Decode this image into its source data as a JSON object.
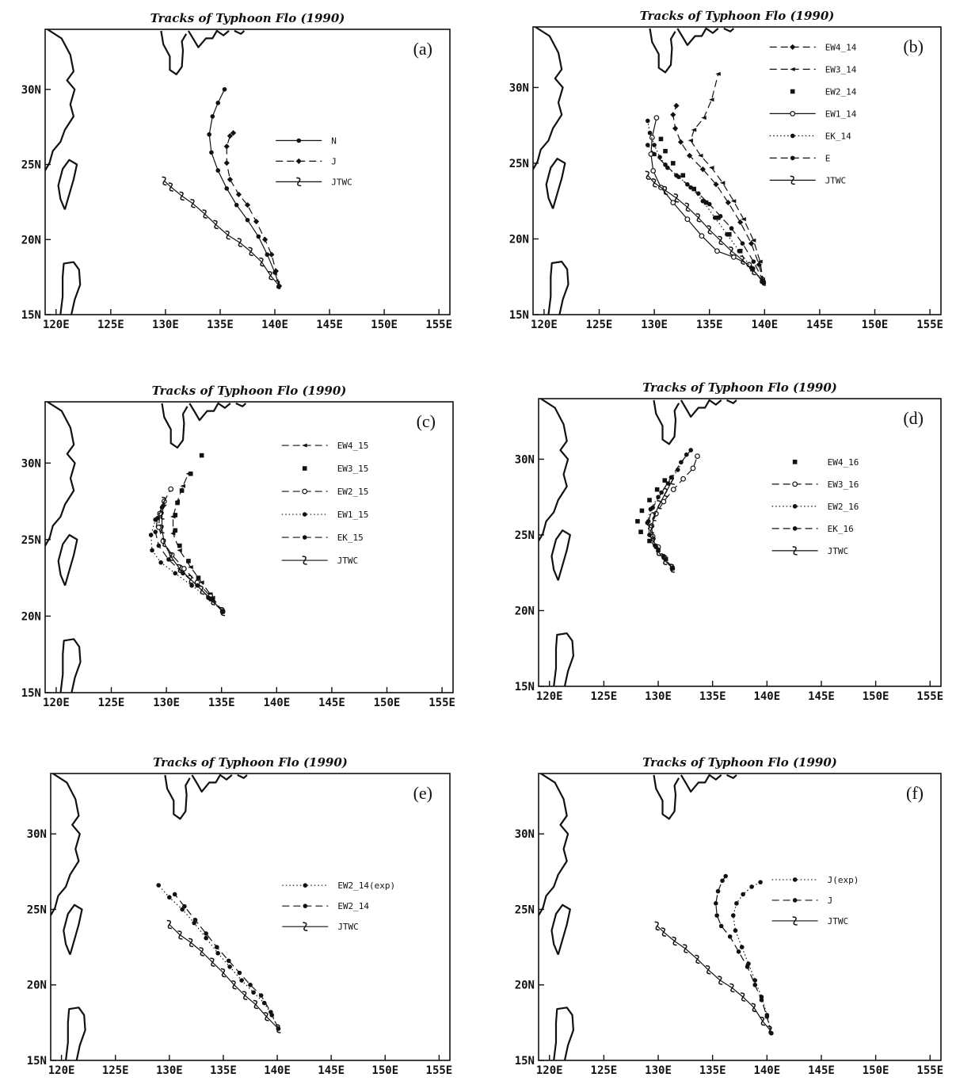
{
  "figure": {
    "panels": [
      {
        "id": "a",
        "label": "(a)",
        "title": "Tracks of Typhoon Flo (1990)"
      },
      {
        "id": "b",
        "label": "(b)",
        "title": "Tracks of Typhoon Flo (1990)"
      },
      {
        "id": "c",
        "label": "(c)",
        "title": "Tracks of Typhoon Flo (1990)"
      },
      {
        "id": "d",
        "label": "(d)",
        "title": "Tracks of Typhoon Flo (1990)"
      },
      {
        "id": "e",
        "label": "(e)",
        "title": "Tracks of Typhoon Flo (1990)"
      },
      {
        "id": "f",
        "label": "(f)",
        "title": "Tracks of Typhoon Flo (1990)"
      }
    ]
  },
  "chart_data": [
    {
      "type": "line",
      "panel": "a",
      "title": "Tracks of Typhoon Flo (1990)",
      "x_ticks": [
        "120E",
        "125E",
        "130E",
        "135E",
        "140E",
        "145E",
        "150E",
        "155E"
      ],
      "y_ticks": [
        "15N",
        "20N",
        "25N",
        "30N"
      ],
      "xlim": [
        119,
        156
      ],
      "ylim": [
        15,
        34
      ],
      "legend_position": "center-right",
      "series": [
        {
          "name": "N",
          "marker": "dot",
          "dash": "solid",
          "x": [
            140.4,
            140.0,
            139.3,
            138.5,
            137.5,
            136.5,
            135.6,
            134.8,
            134.2,
            134.0,
            134.3,
            134.8,
            135.4
          ],
          "y": [
            16.9,
            17.8,
            19.0,
            20.2,
            21.3,
            22.3,
            23.4,
            24.6,
            25.8,
            27.0,
            28.2,
            29.1,
            30.0
          ]
        },
        {
          "name": "J",
          "marker": "diamond",
          "dash": "dash",
          "x": [
            140.4,
            140.1,
            139.7,
            139.1,
            138.3,
            137.5,
            136.7,
            135.9,
            135.6,
            135.6,
            135.9,
            136.2
          ],
          "y": [
            16.9,
            17.9,
            19.0,
            20.0,
            21.2,
            22.3,
            23.0,
            24.0,
            25.1,
            26.2,
            26.9,
            27.1
          ]
        },
        {
          "name": "JTWC",
          "marker": "typhoon",
          "dash": "solid",
          "x": [
            140.3,
            139.6,
            138.8,
            137.8,
            136.8,
            135.7,
            134.6,
            133.6,
            132.5,
            131.5,
            130.5,
            129.9
          ],
          "y": [
            17.0,
            17.6,
            18.5,
            19.2,
            19.8,
            20.3,
            21.0,
            21.7,
            22.4,
            22.9,
            23.5,
            23.9
          ]
        }
      ]
    },
    {
      "type": "line",
      "panel": "b",
      "title": "Tracks of Typhoon Flo (1990)",
      "x_ticks": [
        "120E",
        "125E",
        "130E",
        "135E",
        "140E",
        "145E",
        "150E",
        "155E"
      ],
      "y_ticks": [
        "15N",
        "20N",
        "25N",
        "30N"
      ],
      "xlim": [
        119,
        156
      ],
      "ylim": [
        15,
        34
      ],
      "legend_position": "top-right",
      "series": [
        {
          "name": "EW4_14",
          "marker": "diamond",
          "dash": "dash",
          "x": [
            139.9,
            139.5,
            138.8,
            137.8,
            136.7,
            135.6,
            134.4,
            133.2,
            132.4,
            131.9,
            131.7,
            132.0
          ],
          "y": [
            17.1,
            18.3,
            19.7,
            21.1,
            22.4,
            23.6,
            24.6,
            25.5,
            26.4,
            27.3,
            28.2,
            28.8
          ]
        },
        {
          "name": "EW3_14",
          "marker": "arrow",
          "dash": "dash",
          "x": [
            139.9,
            139.6,
            139.0,
            138.1,
            137.2,
            136.2,
            135.2,
            134.2,
            133.3,
            133.6,
            134.5,
            135.2,
            135.8
          ],
          "y": [
            17.1,
            18.5,
            19.9,
            21.3,
            22.5,
            23.7,
            24.7,
            25.5,
            26.5,
            27.2,
            28.0,
            29.2,
            30.9
          ]
        },
        {
          "name": "EW2_14",
          "marker": "square",
          "dash": "none",
          "x": [
            139.8,
            138.9,
            137.8,
            136.8,
            135.8,
            134.7,
            133.6,
            132.6,
            131.7,
            131.0,
            130.6
          ],
          "y": [
            17.2,
            18.0,
            19.2,
            20.3,
            21.4,
            22.4,
            23.3,
            24.2,
            25.0,
            25.8,
            26.6
          ]
        },
        {
          "name": "EW1_14",
          "marker": "circle-open",
          "dash": "solid",
          "x": [
            139.8,
            138.6,
            137.2,
            135.7,
            134.3,
            133.0,
            131.7,
            130.6,
            129.9,
            129.7,
            129.8,
            130.2
          ],
          "y": [
            17.2,
            18.3,
            18.8,
            19.2,
            20.2,
            21.3,
            22.4,
            23.4,
            24.5,
            25.6,
            26.7,
            28.0
          ]
        },
        {
          "name": "EK_14",
          "marker": "dot",
          "dash": "dot",
          "x": [
            139.8,
            138.8,
            137.7,
            136.6,
            135.5,
            134.4,
            133.3,
            132.2,
            131.2,
            130.5,
            130.0,
            129.6,
            129.4
          ],
          "y": [
            17.2,
            18.1,
            19.2,
            20.3,
            21.4,
            22.5,
            23.4,
            24.1,
            24.7,
            25.4,
            26.2,
            27.0,
            27.8
          ]
        },
        {
          "name": "E",
          "marker": "dot",
          "dash": "dash",
          "x": [
            139.9,
            139.0,
            138.0,
            137.0,
            136.0,
            135.0,
            134.0,
            133.0,
            132.0,
            131.0,
            130.0,
            129.4
          ],
          "y": [
            17.2,
            18.5,
            19.7,
            20.7,
            21.5,
            22.3,
            23.0,
            23.6,
            24.2,
            24.9,
            25.6,
            26.2
          ]
        },
        {
          "name": "JTWC",
          "marker": "typhoon",
          "dash": "solid",
          "x": [
            139.9,
            139.0,
            138.0,
            137.0,
            136.0,
            135.0,
            134.0,
            133.0,
            132.0,
            131.0,
            130.0,
            129.4
          ],
          "y": [
            17.2,
            17.9,
            18.6,
            19.2,
            19.9,
            20.6,
            21.4,
            22.1,
            22.7,
            23.2,
            23.7,
            24.2
          ]
        }
      ]
    },
    {
      "type": "line",
      "panel": "c",
      "title": "Tracks of Typhoon Flo (1990)",
      "x_ticks": [
        "120E",
        "125E",
        "130E",
        "135E",
        "140E",
        "145E",
        "150E",
        "155E"
      ],
      "y_ticks": [
        "15N",
        "20N",
        "25N",
        "30N"
      ],
      "xlim": [
        119,
        156
      ],
      "ylim": [
        15,
        34
      ],
      "legend_position": "top-right",
      "series": [
        {
          "name": "EW4_15",
          "marker": "arrow",
          "dash": "dash",
          "x": [
            135.1,
            134.2,
            133.2,
            132.2,
            131.2,
            130.6,
            130.6,
            131.0,
            131.5,
            132.0
          ],
          "y": [
            20.3,
            21.2,
            22.2,
            23.2,
            24.3,
            25.4,
            26.5,
            27.5,
            28.5,
            29.3
          ]
        },
        {
          "name": "EW3_15",
          "marker": "square",
          "dash": "none",
          "x": [
            135.1,
            134.0,
            132.9,
            132.0,
            131.2,
            130.8,
            130.8,
            131.0,
            131.4,
            132.2,
            133.2
          ],
          "y": [
            20.3,
            21.4,
            22.5,
            23.6,
            24.6,
            25.6,
            26.6,
            27.4,
            28.2,
            29.3,
            30.5
          ]
        },
        {
          "name": "EW2_15",
          "marker": "circle-open",
          "dash": "dash",
          "x": [
            135.1,
            134.0,
            132.8,
            131.6,
            130.5,
            129.7,
            129.3,
            129.4,
            129.8,
            130.4
          ],
          "y": [
            20.3,
            21.3,
            22.2,
            23.1,
            24.0,
            24.9,
            25.8,
            26.7,
            27.5,
            28.3
          ]
        },
        {
          "name": "EW1_15",
          "marker": "dot",
          "dash": "dot",
          "x": [
            135.1,
            133.8,
            132.3,
            130.8,
            129.5,
            128.7,
            128.6,
            129.0,
            129.6
          ],
          "y": [
            20.3,
            21.2,
            22.0,
            22.8,
            23.5,
            24.3,
            25.3,
            26.3,
            27.1
          ]
        },
        {
          "name": "EK_15",
          "marker": "dot",
          "dash": "dash",
          "x": [
            135.1,
            134.0,
            132.8,
            131.5,
            130.2,
            129.3,
            129.0,
            129.2,
            129.7
          ],
          "y": [
            20.3,
            21.1,
            22.0,
            22.8,
            23.7,
            24.6,
            25.5,
            26.4,
            27.2
          ]
        },
        {
          "name": "JTWC",
          "marker": "typhoon",
          "dash": "solid",
          "x": [
            135.1,
            134.2,
            133.2,
            132.2,
            131.2,
            130.4,
            129.8,
            129.6,
            129.6,
            129.8
          ],
          "y": [
            20.3,
            21.0,
            21.7,
            22.4,
            23.1,
            23.9,
            24.8,
            25.7,
            26.6,
            27.5
          ]
        }
      ]
    },
    {
      "type": "line",
      "panel": "d",
      "title": "Tracks of Typhoon Flo (1990)",
      "x_ticks": [
        "120E",
        "125E",
        "130E",
        "135E",
        "140E",
        "145E",
        "150E",
        "155E"
      ],
      "y_ticks": [
        "15N",
        "20N",
        "25N",
        "30N"
      ],
      "xlim": [
        119,
        156
      ],
      "ylim": [
        15,
        34
      ],
      "legend_position": "center-right",
      "series": [
        {
          "name": "EW4_16",
          "marker": "square",
          "dash": "none",
          "x": [
            131.3,
            130.7,
            130.0,
            129.2,
            128.4,
            128.1,
            128.5,
            129.2,
            129.9,
            130.6
          ],
          "y": [
            22.8,
            23.4,
            24.0,
            24.6,
            25.2,
            25.9,
            26.6,
            27.3,
            28.0,
            28.6
          ]
        },
        {
          "name": "EW3_16",
          "marker": "circle-open",
          "dash": "dash",
          "x": [
            131.3,
            130.6,
            130.0,
            129.5,
            129.4,
            129.8,
            130.5,
            131.4,
            132.3,
            133.2,
            133.6
          ],
          "y": [
            22.8,
            23.5,
            24.2,
            24.9,
            25.6,
            26.4,
            27.2,
            28.0,
            28.7,
            29.4,
            30.2
          ]
        },
        {
          "name": "EW2_16",
          "marker": "dot",
          "dash": "dot",
          "x": [
            131.3,
            130.5,
            129.8,
            129.2,
            129.0,
            129.3,
            130.0,
            130.9,
            131.8,
            132.6
          ],
          "y": [
            22.8,
            23.5,
            24.2,
            25.0,
            25.8,
            26.7,
            27.5,
            28.4,
            29.3,
            30.3
          ]
        },
        {
          "name": "EK_16",
          "marker": "dot",
          "dash": "dash",
          "x": [
            131.3,
            130.5,
            129.7,
            129.2,
            129.1,
            129.5,
            130.3,
            131.2,
            132.1,
            133.0
          ],
          "y": [
            22.8,
            23.6,
            24.3,
            25.0,
            25.9,
            26.8,
            27.8,
            28.8,
            29.8,
            30.6
          ]
        },
        {
          "name": "JTWC",
          "marker": "typhoon",
          "dash": "solid",
          "x": [
            131.3,
            130.6,
            130.0,
            129.6,
            129.4,
            129.6,
            130.1,
            130.7,
            131.3
          ],
          "y": [
            22.8,
            23.3,
            23.9,
            24.6,
            25.4,
            26.2,
            27.0,
            27.8,
            28.6
          ]
        }
      ]
    },
    {
      "type": "line",
      "panel": "e",
      "title": "Tracks of Typhoon Flo (1990)",
      "x_ticks": [
        "120E",
        "125E",
        "130E",
        "135E",
        "140E",
        "145E",
        "150E",
        "155E"
      ],
      "y_ticks": [
        "15N",
        "20N",
        "25N",
        "30N"
      ],
      "xlim": [
        119,
        156
      ],
      "ylim": [
        15,
        34
      ],
      "legend_position": "center-right",
      "series": [
        {
          "name": "EW2_14(exp)",
          "marker": "dot",
          "dash": "dot",
          "x": [
            140.1,
            139.5,
            138.8,
            137.8,
            136.7,
            135.6,
            134.5,
            133.4,
            132.3,
            131.2,
            130.0,
            129.0
          ],
          "y": [
            17.1,
            18.0,
            18.8,
            19.5,
            20.3,
            21.2,
            22.1,
            23.1,
            24.1,
            25.0,
            25.8,
            26.6
          ]
        },
        {
          "name": "EW2_14",
          "marker": "dot",
          "dash": "dash",
          "x": [
            140.1,
            139.4,
            138.5,
            137.5,
            136.5,
            135.5,
            134.4,
            133.4,
            132.4,
            131.4,
            130.5
          ],
          "y": [
            17.1,
            18.2,
            19.3,
            20.0,
            20.8,
            21.6,
            22.5,
            23.4,
            24.3,
            25.2,
            26.0
          ]
        },
        {
          "name": "JTWC",
          "marker": "typhoon",
          "dash": "solid",
          "x": [
            140.1,
            139.0,
            138.0,
            137.0,
            136.0,
            135.0,
            134.0,
            133.0,
            132.0,
            131.0,
            130.0
          ],
          "y": [
            17.1,
            17.9,
            18.7,
            19.3,
            20.0,
            20.8,
            21.5,
            22.2,
            22.8,
            23.3,
            24.0
          ]
        }
      ]
    },
    {
      "type": "line",
      "panel": "f",
      "title": "Tracks of Typhoon Flo (1990)",
      "x_ticks": [
        "120E",
        "125E",
        "130E",
        "135E",
        "140E",
        "145E",
        "150E",
        "155E"
      ],
      "y_ticks": [
        "15N",
        "20N",
        "25N",
        "30N"
      ],
      "xlim": [
        119,
        156
      ],
      "ylim": [
        15,
        34
      ],
      "legend_position": "center-right",
      "series": [
        {
          "name": "J(exp)",
          "marker": "dot",
          "dash": "dot",
          "x": [
            140.4,
            140.0,
            139.5,
            138.9,
            138.3,
            137.7,
            137.1,
            136.9,
            137.2,
            137.8,
            138.6,
            139.4
          ],
          "y": [
            16.8,
            18.0,
            19.2,
            20.3,
            21.4,
            22.5,
            23.6,
            24.6,
            25.4,
            26.0,
            26.5,
            26.8
          ]
        },
        {
          "name": "J",
          "marker": "dot",
          "dash": "dash",
          "x": [
            140.4,
            140.0,
            139.5,
            138.9,
            138.2,
            137.4,
            136.6,
            135.8,
            135.4,
            135.3,
            135.5,
            135.9,
            136.2
          ],
          "y": [
            16.8,
            17.9,
            19.0,
            20.0,
            21.2,
            22.2,
            23.2,
            23.9,
            24.6,
            25.4,
            26.2,
            26.9,
            27.2
          ]
        },
        {
          "name": "JTWC",
          "marker": "typhoon",
          "dash": "solid",
          "x": [
            140.3,
            139.6,
            138.8,
            137.8,
            136.8,
            135.7,
            134.6,
            133.6,
            132.5,
            131.5,
            130.5,
            129.9
          ],
          "y": [
            17.0,
            17.6,
            18.5,
            19.2,
            19.8,
            20.3,
            21.0,
            21.7,
            22.4,
            22.9,
            23.5,
            23.9
          ]
        }
      ]
    }
  ]
}
